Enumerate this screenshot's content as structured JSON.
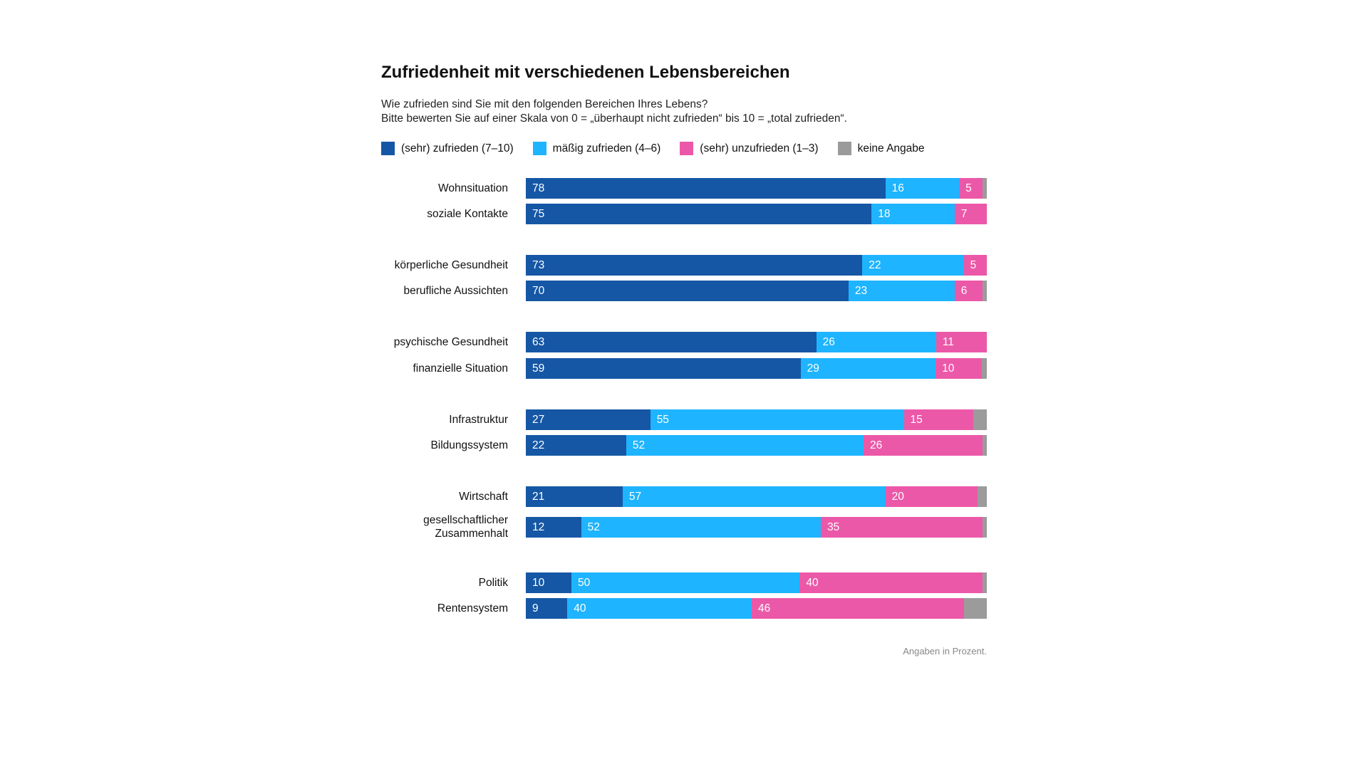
{
  "chart_data": {
    "type": "bar",
    "orientation": "horizontal-stacked",
    "title": "Zufriedenheit mit verschiedenen Lebensbereichen",
    "subtitle": [
      "Wie zufrieden sind Sie mit den folgenden Bereichen Ihres Lebens?",
      "Bitte bewerten Sie auf einer Skala von 0 = „überhaupt nicht zufrieden“ bis 10 = „total zufrieden“."
    ],
    "legend_placement": "top-left",
    "series": [
      {
        "name": "(sehr) zufrieden (7–10)",
        "color": "#1557a5",
        "values": [
          78,
          75,
          73,
          70,
          63,
          59,
          27,
          22,
          21,
          12,
          10,
          9
        ]
      },
      {
        "name": "mäßig zufrieden (4–6)",
        "color": "#1fb4ff",
        "values": [
          16,
          18,
          22,
          23,
          26,
          29,
          55,
          52,
          57,
          52,
          50,
          40
        ]
      },
      {
        "name": "(sehr) unzufrieden (1–3)",
        "color": "#ec58a8",
        "values": [
          5,
          7,
          5,
          6,
          11,
          10,
          15,
          26,
          20,
          35,
          40,
          46
        ]
      },
      {
        "name": "keine Angabe",
        "color": "#9b9b9b",
        "values": [
          1,
          0,
          0,
          1,
          0,
          1,
          3,
          1,
          2,
          1,
          1,
          5
        ]
      }
    ],
    "categories": [
      "Wohnsituation",
      "soziale Kontakte",
      "körperliche Gesundheit",
      "berufliche Aussichten",
      "psychische Gesundheit",
      "finanzielle Situation",
      "Infrastruktur",
      "Bildungssystem",
      "Wirtschaft",
      "gesellschaftlicher\nZusammenhalt",
      "Politik",
      "Rentensystem"
    ],
    "xlim": [
      0,
      100
    ],
    "grid": false,
    "note": "Angaben in Prozent."
  }
}
